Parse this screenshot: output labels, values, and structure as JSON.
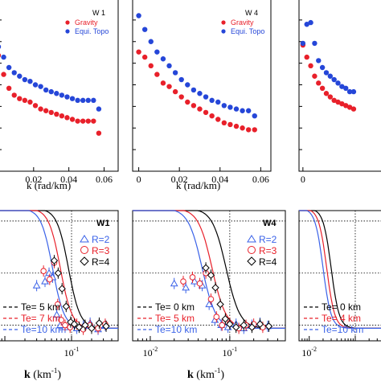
{
  "colors": {
    "gravity": "#e8202a",
    "topo": "#2546d8",
    "black": "#000000",
    "blue": "#3a62e8",
    "red": "#e8202a"
  },
  "chart_data": [
    {
      "type": "scatter",
      "title": "W 1",
      "xlabel": "k (rad/km)",
      "xticks": [
        "0.02",
        "0.04",
        "0.06"
      ],
      "xlim": [
        0.0,
        0.068
      ],
      "ylim": [
        0,
        1
      ],
      "legend": [
        "Gravity",
        "Equi. Topo"
      ],
      "legend_position": "top-right",
      "series": [
        {
          "name": "Gravity",
          "x": [
            0.0,
            0.003,
            0.006,
            0.009,
            0.012,
            0.015,
            0.018,
            0.021,
            0.024,
            0.027,
            0.03,
            0.033,
            0.036,
            0.039,
            0.042,
            0.045,
            0.048,
            0.051,
            0.054,
            0.057
          ],
          "y": [
            0.67,
            0.56,
            0.48,
            0.44,
            0.42,
            0.41,
            0.4,
            0.38,
            0.36,
            0.35,
            0.34,
            0.33,
            0.32,
            0.31,
            0.3,
            0.29,
            0.29,
            0.29,
            0.29,
            0.22
          ]
        },
        {
          "name": "Equi. Topo",
          "x": [
            0.0,
            0.003,
            0.006,
            0.009,
            0.012,
            0.015,
            0.018,
            0.021,
            0.024,
            0.027,
            0.03,
            0.033,
            0.036,
            0.039,
            0.042,
            0.045,
            0.048,
            0.051,
            0.054,
            0.057
          ],
          "y": [
            0.72,
            0.66,
            0.6,
            0.57,
            0.55,
            0.53,
            0.52,
            0.5,
            0.49,
            0.47,
            0.46,
            0.45,
            0.44,
            0.43,
            0.42,
            0.41,
            0.41,
            0.41,
            0.41,
            0.36
          ]
        }
      ]
    },
    {
      "type": "scatter",
      "title": "W 4",
      "xlabel": "k (rad/km)",
      "xticks": [
        "0",
        "0.02",
        "0.04",
        "0.06"
      ],
      "xlim": [
        -0.003,
        0.065
      ],
      "ylim": [
        0,
        1
      ],
      "legend": [
        "Gravity",
        "Equi. Topo"
      ],
      "legend_position": "top-right",
      "series": [
        {
          "name": "Gravity",
          "x": [
            0.0,
            0.003,
            0.006,
            0.009,
            0.012,
            0.015,
            0.018,
            0.021,
            0.024,
            0.027,
            0.03,
            0.033,
            0.036,
            0.039,
            0.042,
            0.045,
            0.048,
            0.051,
            0.054,
            0.057
          ],
          "y": [
            0.69,
            0.66,
            0.61,
            0.56,
            0.51,
            0.49,
            0.46,
            0.43,
            0.4,
            0.38,
            0.36,
            0.34,
            0.32,
            0.3,
            0.28,
            0.27,
            0.26,
            0.25,
            0.24,
            0.24
          ]
        },
        {
          "name": "Equi. Topo",
          "x": [
            0.0,
            0.003,
            0.006,
            0.009,
            0.012,
            0.015,
            0.018,
            0.021,
            0.024,
            0.027,
            0.03,
            0.033,
            0.036,
            0.039,
            0.042,
            0.045,
            0.048,
            0.051,
            0.054,
            0.057
          ],
          "y": [
            0.9,
            0.82,
            0.75,
            0.69,
            0.65,
            0.61,
            0.57,
            0.53,
            0.5,
            0.47,
            0.45,
            0.43,
            0.41,
            0.4,
            0.38,
            0.37,
            0.36,
            0.35,
            0.35,
            0.32
          ]
        }
      ]
    },
    {
      "type": "scatter",
      "title": "",
      "xlabel": "",
      "xticks": [
        "0"
      ],
      "xlim": [
        -0.003,
        0.065
      ],
      "ylim": [
        0,
        1
      ],
      "series": [
        {
          "name": "",
          "x": [
            0.0,
            0.003,
            0.006,
            0.009,
            0.012,
            0.015,
            0.018,
            0.021,
            0.024,
            0.027,
            0.03,
            0.033,
            0.036,
            0.039
          ],
          "y": [
            0.73,
            0.66,
            0.61,
            0.55,
            0.51,
            0.48,
            0.45,
            0.43,
            0.41,
            0.4,
            0.39,
            0.38,
            0.37,
            0.36
          ]
        },
        {
          "name": "",
          "x": [
            0.0,
            0.003,
            0.006,
            0.009,
            0.012,
            0.015,
            0.018,
            0.021,
            0.024,
            0.027,
            0.03,
            0.033,
            0.036,
            0.039
          ],
          "y": [
            0.74,
            0.85,
            0.86,
            0.74,
            0.64,
            0.6,
            0.57,
            0.55,
            0.53,
            0.51,
            0.49,
            0.48,
            0.46,
            0.46
          ]
        }
      ]
    },
    {
      "type": "line",
      "title": "W1",
      "xlabel": "k (km-1)",
      "x_scale": "log",
      "xticks": [
        "10-1"
      ],
      "xlim": [
        0.008,
        0.5
      ],
      "ylim": [
        -0.15,
        1.1
      ],
      "curves": [
        {
          "label": "Te=  5 km",
          "color": "#000000",
          "dash": "4,3",
          "k50": 0.09
        },
        {
          "label": "Te=  7 km",
          "color": "#e8202a",
          "dash": "4,3",
          "k50": 0.068
        },
        {
          "label": "Te=10 km",
          "color": "#3a62e8",
          "dash": "4,3",
          "k50": 0.052
        }
      ],
      "markers": [
        {
          "name": "R=2",
          "symbol": "triangle",
          "color": "#3a62e8",
          "x": [
            0.03,
            0.04,
            0.046,
            0.052,
            0.06,
            0.068,
            0.08,
            0.095,
            0.12,
            0.15,
            0.19,
            0.25,
            0.32
          ],
          "y": [
            0.38,
            0.42,
            0.5,
            0.46,
            0.1,
            0.0,
            -0.02,
            0.0,
            -0.03,
            -0.01,
            0.02,
            -0.04,
            0.0
          ]
        },
        {
          "name": "R=3",
          "symbol": "circle",
          "color": "#e8202a",
          "x": [
            0.038,
            0.047,
            0.055,
            0.062,
            0.07,
            0.08,
            0.095,
            0.12,
            0.15,
            0.19,
            0.25,
            0.32
          ],
          "y": [
            0.52,
            0.44,
            0.6,
            0.2,
            0.05,
            0.0,
            -0.02,
            0.01,
            -0.04,
            0.0,
            -0.03,
            0.01
          ]
        },
        {
          "name": "R=4",
          "symbol": "diamond",
          "color": "#000000",
          "x": [
            0.055,
            0.063,
            0.072,
            0.083,
            0.097,
            0.11,
            0.13,
            0.16,
            0.2,
            0.26,
            0.33
          ],
          "y": [
            0.62,
            0.5,
            0.35,
            0.18,
            0.03,
            0.01,
            -0.02,
            0.0,
            -0.03,
            0.02,
            -0.01
          ]
        }
      ],
      "legend": [
        "R=2",
        "R=3",
        "R=4"
      ]
    },
    {
      "type": "line",
      "title": "W4",
      "xlabel": "k (km-1)",
      "x_scale": "log",
      "xticks": [
        "10-2",
        "10-1"
      ],
      "xlim": [
        0.006,
        0.5
      ],
      "ylim": [
        -0.15,
        1.1
      ],
      "curves": [
        {
          "label": "Te=  0 km",
          "color": "#000000",
          "dash": "4,3",
          "k50": 0.09
        },
        {
          "label": "Te=  5 km",
          "color": "#e8202a",
          "dash": "4,3",
          "k50": 0.06
        },
        {
          "label": "Te=10 km",
          "color": "#3a62e8",
          "dash": "4,3",
          "k50": 0.045
        }
      ],
      "markers": [
        {
          "name": "R=2",
          "symbol": "triangle",
          "color": "#3a62e8",
          "x": [
            0.02,
            0.028,
            0.036,
            0.045,
            0.055,
            0.065,
            0.078,
            0.095,
            0.12,
            0.15,
            0.19,
            0.24,
            0.3
          ],
          "y": [
            0.4,
            0.36,
            0.42,
            0.38,
            0.2,
            0.05,
            0.0,
            -0.02,
            0.01,
            -0.03,
            0.0,
            0.02,
            -0.01
          ]
        },
        {
          "name": "R=3",
          "symbol": "circle",
          "color": "#e8202a",
          "x": [
            0.026,
            0.034,
            0.042,
            0.05,
            0.058,
            0.068,
            0.08,
            0.1,
            0.13,
            0.16,
            0.2,
            0.26
          ],
          "y": [
            0.42,
            0.46,
            0.4,
            0.5,
            0.25,
            0.08,
            0.0,
            0.02,
            -0.03,
            0.0,
            0.01,
            -0.02
          ]
        },
        {
          "name": "R=4",
          "symbol": "diamond",
          "color": "#000000",
          "x": [
            0.05,
            0.058,
            0.066,
            0.076,
            0.088,
            0.1,
            0.12,
            0.15,
            0.19,
            0.24,
            0.31
          ],
          "y": [
            0.55,
            0.48,
            0.36,
            0.2,
            0.06,
            0.01,
            -0.02,
            0.0,
            -0.02,
            0.01,
            -0.01
          ]
        }
      ],
      "legend": [
        "R=2",
        "R=3",
        "R=4"
      ]
    },
    {
      "type": "line",
      "title": "",
      "xlabel": "",
      "x_scale": "log",
      "xticks": [
        "10-2"
      ],
      "xlim": [
        0.006,
        0.5
      ],
      "ylim": [
        -0.15,
        1.1
      ],
      "curves": [
        {
          "label": "Te=  0 km",
          "color": "#000000",
          "dash": "4,3",
          "k50": 0.03
        },
        {
          "label": "Te=  4 km",
          "color": "#e8202a",
          "dash": "4,3",
          "k50": 0.024
        },
        {
          "label": "Te=10 km",
          "color": "#3a62e8",
          "dash": "4,3",
          "k50": 0.02
        }
      ],
      "markers": [],
      "legend": []
    }
  ]
}
